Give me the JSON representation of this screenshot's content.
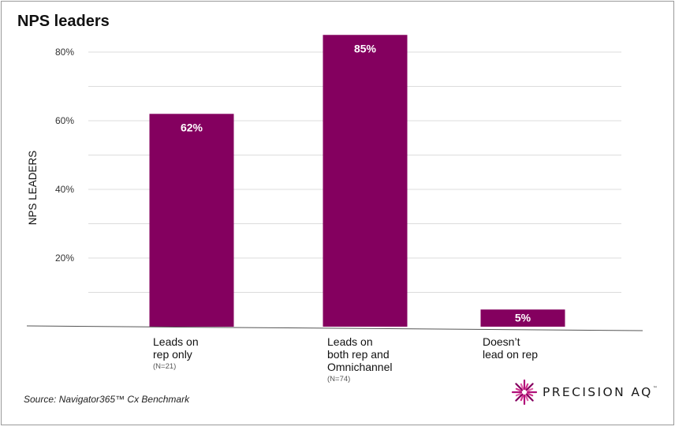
{
  "page": {
    "title": "NPS leaders"
  },
  "chart_data": {
    "type": "bar",
    "title": "NPS leaders",
    "xlabel": "",
    "ylabel": "NPS LEADERS",
    "ylim": [
      0,
      90
    ],
    "yticks": [
      0,
      10,
      20,
      30,
      40,
      50,
      60,
      70,
      80
    ],
    "ytick_labels": {
      "20": "20%",
      "40": "40%",
      "60": "60%",
      "80": "80%"
    },
    "grid": true,
    "bar_color": "#84005f",
    "categories": [
      {
        "lines": [
          "Leads on",
          "rep only"
        ],
        "n": "(N=21)"
      },
      {
        "lines": [
          "Leads on",
          "both rep and",
          "Omnichannel"
        ],
        "n": "(N=74)"
      },
      {
        "lines": [
          "Doesn’t",
          "lead on rep"
        ],
        "n": ""
      }
    ],
    "values": [
      62,
      85,
      5
    ],
    "data_labels": [
      "62%",
      "85%",
      "5%"
    ]
  },
  "footer": {
    "source": "Source: Navigator365™ Cx Benchmark",
    "brand": "PRECISION AQ",
    "brand_tm": "™",
    "accent_color": "#b0127a"
  }
}
